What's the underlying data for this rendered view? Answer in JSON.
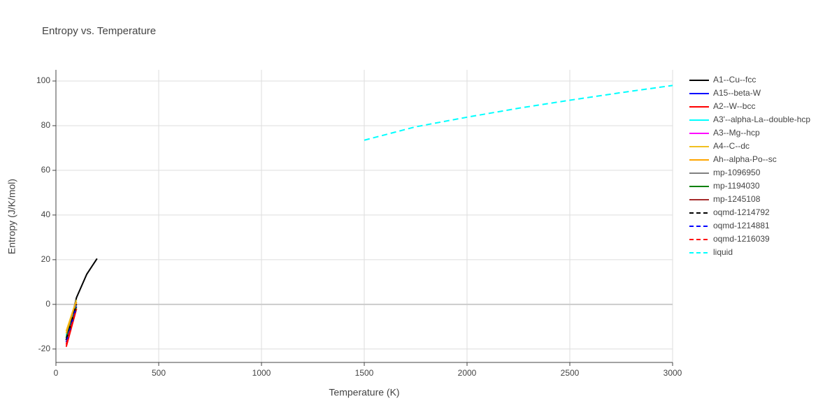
{
  "chart_data": {
    "type": "line",
    "title": "Entropy vs. Temperature",
    "x_label": "Temperature (K)",
    "y_label": "Entropy (J/K/mol)",
    "xlim": [
      0,
      3000
    ],
    "ylim": [
      -26,
      105
    ],
    "xticks": [
      0,
      500,
      1000,
      1500,
      2000,
      2500,
      3000
    ],
    "yticks": [
      -20,
      0,
      20,
      40,
      60,
      80,
      100
    ],
    "grid": true,
    "series": [
      {
        "name": "A1--Cu--fcc",
        "color": "#000000",
        "dash": false,
        "x": [
          50,
          100,
          150,
          200
        ],
        "values": [
          -16,
          3,
          13.5,
          20.5
        ]
      },
      {
        "name": "A15--beta-W",
        "color": "#0000ff",
        "dash": false,
        "x": [
          50,
          100
        ],
        "values": [
          -16,
          1
        ]
      },
      {
        "name": "A2--W--bcc",
        "color": "#ff0000",
        "dash": false,
        "x": [
          50,
          100
        ],
        "values": [
          -19,
          -2
        ]
      },
      {
        "name": "A3'--alpha-La--double-hcp",
        "color": "#00ffff",
        "dash": false,
        "x": [
          50,
          100
        ],
        "values": [
          -14,
          2
        ]
      },
      {
        "name": "A3--Mg--hcp",
        "color": "#ff00ff",
        "dash": false,
        "x": [
          50,
          100
        ],
        "values": [
          -15,
          0
        ]
      },
      {
        "name": "A4--C--dc",
        "color": "#f0c020",
        "dash": false,
        "x": [
          50,
          100
        ],
        "values": [
          -12,
          2
        ]
      },
      {
        "name": "Ah--alpha-Po--sc",
        "color": "#ffa500",
        "dash": false,
        "x": [
          50,
          100
        ],
        "values": [
          -13,
          1
        ]
      },
      {
        "name": "mp-1096950",
        "color": "#808080",
        "dash": false,
        "x": [
          50,
          100
        ],
        "values": [
          -15,
          0
        ]
      },
      {
        "name": "mp-1194030",
        "color": "#008000",
        "dash": false,
        "x": [
          50,
          100
        ],
        "values": [
          -15,
          -1
        ]
      },
      {
        "name": "mp-1245108",
        "color": "#a52a2a",
        "dash": false,
        "x": [
          50,
          100
        ],
        "values": [
          -16,
          -2
        ]
      },
      {
        "name": "oqmd-1214792",
        "color": "#000000",
        "dash": true,
        "x": [
          50,
          100
        ],
        "values": [
          -16,
          0
        ]
      },
      {
        "name": "oqmd-1214881",
        "color": "#0000ff",
        "dash": true,
        "x": [
          50,
          100
        ],
        "values": [
          -17,
          -1
        ]
      },
      {
        "name": "oqmd-1216039",
        "color": "#ff0000",
        "dash": true,
        "x": [
          50,
          100
        ],
        "values": [
          -18,
          -2
        ]
      },
      {
        "name": "liquid",
        "color": "#00ffff",
        "dash": true,
        "x": [
          1500,
          1750,
          2000,
          2250,
          2500,
          2750,
          3000
        ],
        "values": [
          73.5,
          79.5,
          83.8,
          87.8,
          91.4,
          94.8,
          98
        ]
      }
    ]
  }
}
